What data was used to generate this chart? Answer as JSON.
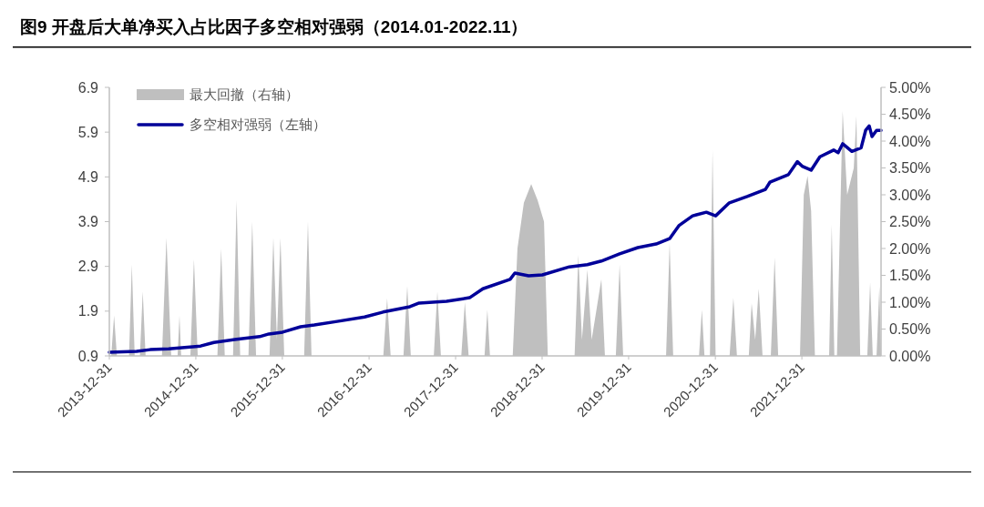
{
  "chart_data": {
    "type": "line",
    "title": "图9  开盘后大单净买入占比因子多空相对强弱（2014.01-2022.11）",
    "xlim": [
      "2013-12-31",
      "2022-11-30"
    ],
    "xticks": [
      {
        "value": "2013-12-31",
        "label": "2013-12-31"
      },
      {
        "value": "2014-12-31",
        "label": "2014-12-31"
      },
      {
        "value": "2015-12-31",
        "label": "2015-12-31"
      },
      {
        "value": "2016-12-31",
        "label": "2016-12-31"
      },
      {
        "value": "2017-12-31",
        "label": "2017-12-31"
      },
      {
        "value": "2018-12-31",
        "label": "2018-12-31"
      },
      {
        "value": "2019-12-31",
        "label": "2019-12-31"
      },
      {
        "value": "2020-12-31",
        "label": "2020-12-31"
      },
      {
        "value": "2021-12-31",
        "label": "2021-12-31"
      }
    ],
    "ylim": [
      0.9,
      6.9
    ],
    "yticks": [
      0.9,
      1.9,
      2.9,
      3.9,
      4.9,
      5.9,
      6.9
    ],
    "y2lim": [
      0,
      5
    ],
    "y2ticks": [
      {
        "value": 0,
        "label": "0.00%"
      },
      {
        "value": 0.5,
        "label": "0.50%"
      },
      {
        "value": 1,
        "label": "1.00%"
      },
      {
        "value": 1.5,
        "label": "1.50%"
      },
      {
        "value": 2,
        "label": "2.00%"
      },
      {
        "value": 2.5,
        "label": "2.50%"
      },
      {
        "value": 3,
        "label": "3.00%"
      },
      {
        "value": 3.5,
        "label": "3.50%"
      },
      {
        "value": 4,
        "label": "4.00%"
      },
      {
        "value": 4.5,
        "label": "4.50%"
      },
      {
        "value": 5,
        "label": "5.00%"
      }
    ],
    "grid": false,
    "legend": "top left",
    "marker": "none",
    "line_style": "solid",
    "series": [
      {
        "name": "最大回撤（右轴）",
        "type": "area",
        "axis": "y2",
        "color": "#bfbfbf",
        "x": [
          "2013-12-31",
          "2014-01-08",
          "2014-01-20",
          "2014-02-01",
          "2014-03-24",
          "2014-04-05",
          "2014-04-17",
          "2014-05-09",
          "2014-05-21",
          "2014-06-02",
          "2014-08-10",
          "2014-08-29",
          "2014-09-18",
          "2014-10-15",
          "2014-10-23",
          "2014-10-30",
          "2014-12-08",
          "2014-12-23",
          "2015-01-08",
          "2015-04-01",
          "2015-04-17",
          "2015-05-02",
          "2015-06-06",
          "2015-06-21",
          "2015-07-06",
          "2015-08-10",
          "2015-08-26",
          "2015-09-11",
          "2015-11-07",
          "2015-11-23",
          "2015-12-08",
          "2015-12-23",
          "2016-01-08",
          "2016-04-01",
          "2016-04-17",
          "2016-05-02",
          "2017-03-01",
          "2017-03-17",
          "2017-04-01",
          "2017-05-25",
          "2017-06-10",
          "2017-06-25",
          "2017-09-30",
          "2017-10-15",
          "2017-10-30",
          "2018-01-24",
          "2018-02-08",
          "2018-02-24",
          "2018-05-02",
          "2018-05-14",
          "2018-05-25",
          "2018-08-29",
          "2018-09-18",
          "2018-10-15",
          "2018-11-15",
          "2018-12-12",
          "2019-01-08",
          "2019-01-24",
          "2019-05-17",
          "2019-06-02",
          "2019-06-17",
          "2019-07-10",
          "2019-07-28",
          "2019-09-07",
          "2019-09-22",
          "2019-11-07",
          "2019-11-23",
          "2019-12-08",
          "2020-06-06",
          "2020-06-21",
          "2020-07-06",
          "2020-10-23",
          "2020-11-04",
          "2020-11-15",
          "2020-12-08",
          "2020-12-19",
          "2021-01-01",
          "2021-03-01",
          "2021-03-17",
          "2021-04-01",
          "2021-05-21",
          "2021-06-02",
          "2021-06-17",
          "2021-07-02",
          "2021-07-18",
          "2021-08-22",
          "2021-09-07",
          "2021-09-22",
          "2021-12-23",
          "2022-01-08",
          "2022-01-24",
          "2022-02-08",
          "2022-02-24",
          "2022-04-25",
          "2022-05-06",
          "2022-05-17",
          "2022-05-28",
          "2022-06-21",
          "2022-07-10",
          "2022-08-07",
          "2022-08-18",
          "2022-09-03",
          "2022-10-03",
          "2022-10-15",
          "2022-10-26",
          "2022-11-11",
          "2022-11-23",
          "2022-11-30"
        ],
        "values": [
          0,
          0,
          0.75,
          0,
          0,
          1.7,
          0,
          0,
          1.2,
          0,
          0,
          2.2,
          0,
          0,
          0.75,
          0,
          0,
          1.8,
          0,
          0,
          2.0,
          0,
          0,
          2.9,
          0,
          0,
          2.5,
          0,
          0,
          2.2,
          0.3,
          2.2,
          0,
          0,
          2.5,
          0,
          0,
          1.07,
          0,
          0,
          1.3,
          0,
          0,
          1.2,
          0,
          0,
          1.0,
          0,
          0,
          0.86,
          0,
          0,
          2.0,
          2.85,
          3.2,
          2.9,
          2.5,
          0,
          0,
          1.88,
          0.3,
          1.6,
          0.3,
          1.43,
          0,
          0,
          1.7,
          0,
          0,
          2.1,
          0,
          0,
          0.86,
          0,
          0,
          3.83,
          0,
          0,
          1.08,
          0,
          0,
          0.98,
          0.3,
          1.25,
          0,
          0,
          1.83,
          0,
          0,
          3.0,
          3.35,
          2.7,
          0,
          0,
          2.44,
          0,
          0,
          4.56,
          3.0,
          3.5,
          4.47,
          0,
          0,
          1.37,
          0,
          0,
          1.3,
          0
        ]
      },
      {
        "name": "多空相对强弱（左轴）",
        "color": "#000099",
        "x": [
          "2013-12-31",
          "2014-04-25",
          "2014-06-21",
          "2014-09-07",
          "2015-01-20",
          "2015-03-17",
          "2015-06-21",
          "2015-09-26",
          "2015-11-04",
          "2016-01-01",
          "2016-03-17",
          "2016-05-14",
          "2016-08-18",
          "2016-12-12",
          "2017-02-28",
          "2017-06-21",
          "2017-07-30",
          "2017-11-23",
          "2018-02-28",
          "2018-04-25",
          "2018-08-18",
          "2018-09-07",
          "2018-11-04",
          "2019-01-01",
          "2019-04-25",
          "2019-07-10",
          "2019-09-07",
          "2019-11-23",
          "2020-02-08",
          "2020-04-25",
          "2020-06-21",
          "2020-07-30",
          "2020-09-26",
          "2020-11-23",
          "2021-01-01",
          "2021-02-28",
          "2021-05-14",
          "2021-07-30",
          "2021-08-18",
          "2021-11-04",
          "2021-12-12",
          "2022-01-01",
          "2022-02-08",
          "2022-03-17",
          "2022-05-14",
          "2022-06-02",
          "2022-06-21",
          "2022-07-30",
          "2022-09-07",
          "2022-09-26",
          "2022-10-11",
          "2022-10-23",
          "2022-11-11",
          "2022-11-30"
        ],
        "values": [
          0.98,
          1.0,
          1.04,
          1.06,
          1.12,
          1.2,
          1.27,
          1.33,
          1.39,
          1.43,
          1.55,
          1.59,
          1.67,
          1.77,
          1.88,
          2.0,
          2.08,
          2.12,
          2.2,
          2.4,
          2.61,
          2.75,
          2.69,
          2.71,
          2.89,
          2.94,
          3.02,
          3.18,
          3.32,
          3.4,
          3.52,
          3.81,
          4.03,
          4.11,
          4.03,
          4.32,
          4.46,
          4.62,
          4.78,
          4.95,
          5.24,
          5.14,
          5.05,
          5.35,
          5.5,
          5.44,
          5.64,
          5.47,
          5.55,
          5.94,
          6.04,
          5.8,
          5.94,
          5.94
        ]
      }
    ]
  }
}
